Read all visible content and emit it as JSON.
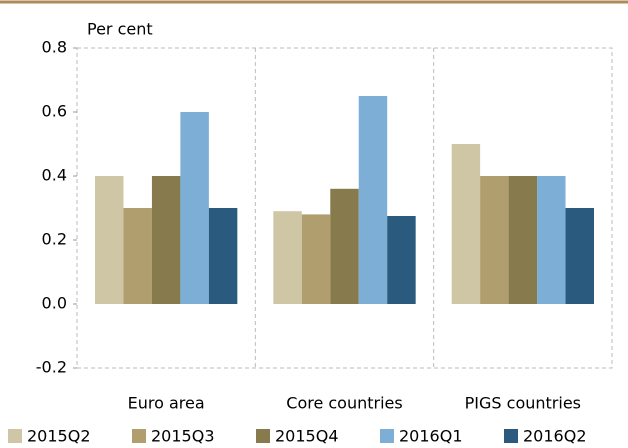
{
  "chart_data": {
    "type": "bar",
    "y_label": "Per cent",
    "categories": [
      "Euro area",
      "Core countries",
      "PIGS countries"
    ],
    "series": [
      {
        "name": "2015Q2",
        "color": "#cfc6a6",
        "values": [
          0.4,
          0.29,
          0.5
        ]
      },
      {
        "name": "2015Q3",
        "color": "#b09e6e",
        "values": [
          0.3,
          0.28,
          0.4
        ]
      },
      {
        "name": "2015Q4",
        "color": "#877a4c",
        "values": [
          0.4,
          0.36,
          0.4
        ]
      },
      {
        "name": "2016Q1",
        "color": "#7daed6",
        "values": [
          0.6,
          0.65,
          0.4
        ]
      },
      {
        "name": "2016Q2",
        "color": "#2b5a7f",
        "values": [
          0.3,
          0.275,
          0.3
        ]
      }
    ],
    "ylim": [
      -0.2,
      0.8
    ],
    "yticks": [
      -0.2,
      {
        "value": 0,
        "label": "0.0"
      },
      0.2,
      0.4,
      0.6,
      0.8
    ],
    "grid": false
  }
}
